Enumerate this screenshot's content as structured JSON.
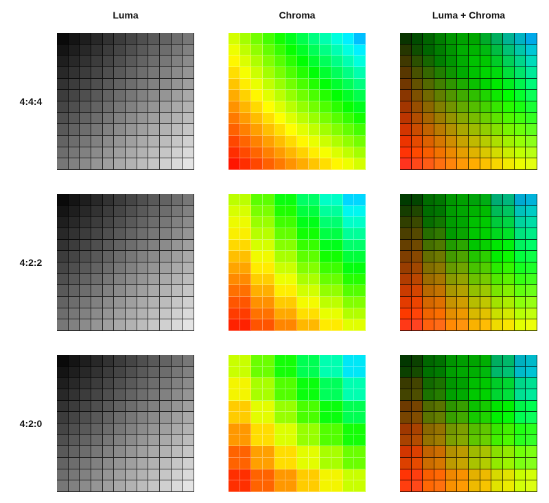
{
  "columns": [
    {
      "label": "Luma"
    },
    {
      "label": "Chroma"
    },
    {
      "label": "Luma + Chroma"
    }
  ],
  "rows": [
    {
      "label": "4:4:4",
      "h_sub": 1,
      "v_sub": 1
    },
    {
      "label": "4:2:2",
      "h_sub": 2,
      "v_sub": 1
    },
    {
      "label": "4:2:0",
      "h_sub": 2,
      "v_sub": 2
    }
  ],
  "grid_cells_per_side": 12,
  "corner_hues": {
    "top_left": 70,
    "top_right": 195,
    "bottom_left": 5,
    "bottom_right": 70
  },
  "luma_range": {
    "top_left": 10,
    "bottom_right": 228
  }
}
